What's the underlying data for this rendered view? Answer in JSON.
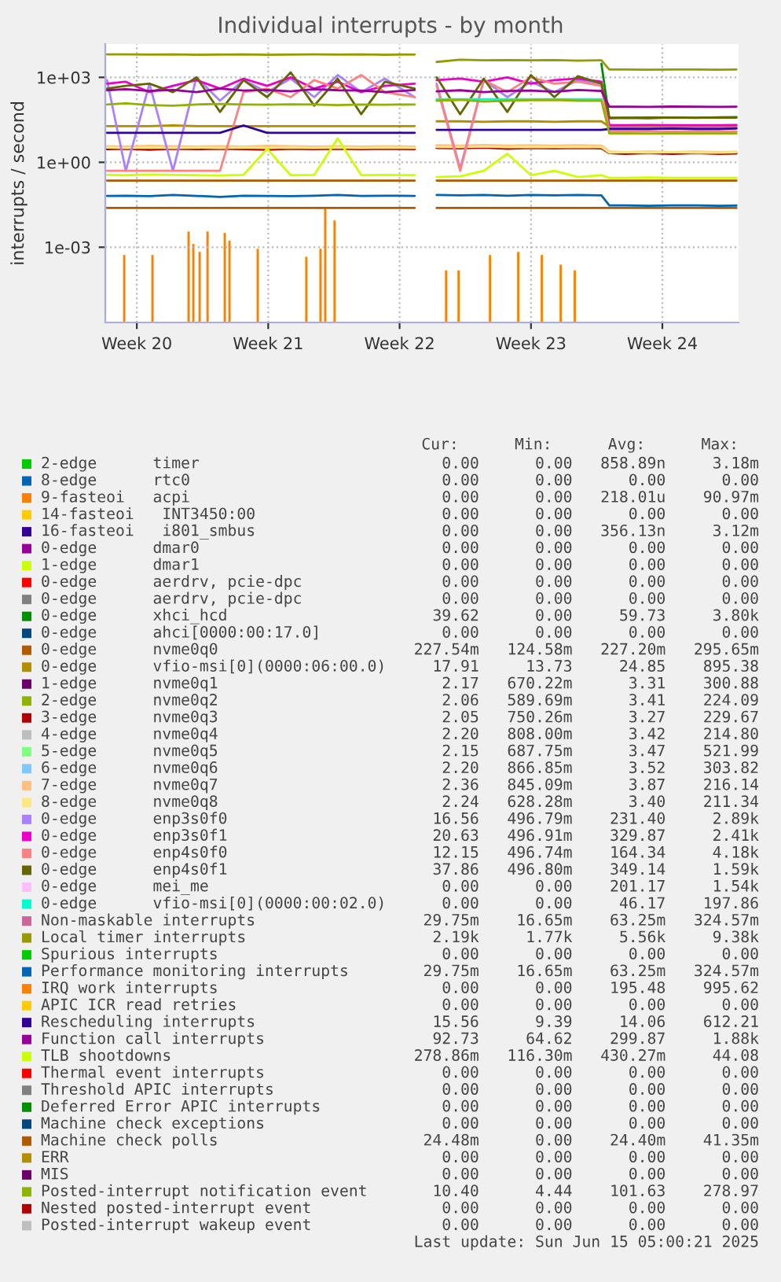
{
  "chart_data": {
    "type": "line",
    "title": "Individual interrupts - by month",
    "ylabel": "interrupts / second",
    "x": [
      "2025-05-10T09:52",
      "2025-05-11T09:53",
      "2025-05-12T16:08",
      "2025-05-13T22:12",
      "2025-05-15T04:16",
      "2025-05-16T10:21",
      "2025-05-17T16:25",
      "2025-05-18T22:39",
      "2025-05-20T04:44",
      "2025-05-21T10:48",
      "2025-05-22T16:52",
      "2025-05-23T22:57",
      "2025-05-25T05:11",
      "2025-05-26T19:19",
      "2025-05-27T07:15",
      "2025-05-27T23:23",
      "2025-05-29T05:27",
      "2025-05-30T11:31",
      "2025-05-31T17:46",
      "2025-06-01T23:50",
      "2025-06-03T05:54",
      "2025-06-04T11:59",
      "2025-06-05T18:03",
      "2025-06-06T04:08",
      "2025-06-07T00:17",
      "2025-06-08T06:22",
      "2025-06-09T12:26",
      "2025-06-10T18:30",
      "2025-06-12T00:35",
      "2025-06-12T22:45"
    ],
    "xlim": [
      "2025-05-10T07:41",
      "2025-06-13T01:26"
    ],
    "xticks": [
      {
        "value": "2025-05-12",
        "label": "Week 20"
      },
      {
        "value": "2025-05-19",
        "label": "Week 21"
      },
      {
        "value": "2025-05-26",
        "label": "Week 22"
      },
      {
        "value": "2025-06-02",
        "label": "Week 23"
      },
      {
        "value": "2025-06-09",
        "label": "Week 24"
      }
    ],
    "log": "y",
    "ylim": [
      2.2e-06,
      15000
    ],
    "yticks": [
      {
        "value": 0.001,
        "label": "1e-03"
      },
      {
        "value": 1,
        "label": "1e+00"
      },
      {
        "value": 1000,
        "label": "1e+03"
      }
    ],
    "grid": true,
    "legend": "bottom",
    "series": [
      {
        "name": "2-edge      timer",
        "color": "#00cc00",
        "values": [
          null,
          null,
          null,
          null,
          null,
          null,
          null,
          null,
          null,
          null,
          null,
          null,
          null,
          null,
          null,
          null,
          null,
          null,
          null,
          null,
          null,
          null,
          null,
          null,
          null,
          null,
          null,
          null,
          null,
          null
        ]
      },
      {
        "name": "8-edge      rtc0",
        "color": "#0066b3",
        "values": [
          null,
          null,
          null,
          null,
          null,
          null,
          null,
          null,
          null,
          null,
          null,
          null,
          null,
          null,
          null,
          null,
          null,
          null,
          null,
          null,
          null,
          null,
          null,
          null,
          null,
          null,
          null,
          null,
          null,
          null
        ]
      },
      {
        "name": "9-fasteoi   acpi",
        "color": "#ff8000",
        "type": "bar",
        "x": [
          "2025-05-11T07:52",
          "2025-05-12T19:59",
          "2025-05-14T18:12",
          "2025-05-15T00:14",
          "2025-05-15T08:18",
          "2025-05-15T18:23",
          "2025-05-16T16:24",
          "2025-05-16T22:26",
          "2025-05-18T10:34",
          "2025-05-21T00:43",
          "2025-05-21T18:52",
          "2025-05-22T00:55",
          "2025-05-22T12:50",
          "2025-05-28T11:28",
          "2025-05-29T03:26",
          "2025-05-30T19:35",
          "2025-06-01T07:42",
          "2025-06-02T13:47",
          "2025-06-03T13:58",
          "2025-06-04T07:57"
        ],
        "values": [
          0.00053,
          0.00053,
          0.0036,
          0.0013,
          0.00068,
          0.0036,
          0.0032,
          0.0017,
          0.00088,
          0.00046,
          0.00088,
          0.025,
          0.0088,
          0.00015,
          0.00015,
          0.00053,
          0.00068,
          0.00053,
          0.00024,
          0.00015
        ]
      },
      {
        "name": "14-fasteoi   INT3450:00",
        "color": "#ffcc00",
        "values": [
          null,
          null,
          null,
          null,
          null,
          null,
          null,
          null,
          null,
          null,
          null,
          null,
          null,
          null,
          null,
          null,
          null,
          null,
          null,
          null,
          null,
          null,
          null,
          null,
          null,
          null,
          null,
          null,
          null,
          null
        ]
      },
      {
        "name": "16-fasteoi   i801_smbus",
        "color": "#330099",
        "values": [
          null,
          null,
          null,
          null,
          null,
          null,
          null,
          null,
          null,
          null,
          null,
          null,
          null,
          null,
          null,
          null,
          null,
          null,
          null,
          null,
          null,
          null,
          null,
          null,
          null,
          null,
          null,
          null,
          null,
          null
        ]
      },
      {
        "name": "0-edge      dmar0",
        "color": "#990099",
        "values": [
          null,
          null,
          null,
          null,
          null,
          null,
          null,
          null,
          null,
          null,
          null,
          null,
          null,
          null,
          null,
          null,
          null,
          null,
          null,
          null,
          null,
          null,
          null,
          null,
          null,
          null,
          null,
          null,
          null,
          null
        ]
      },
      {
        "name": "1-edge      dmar1",
        "color": "#ccff00",
        "values": [
          null,
          null,
          null,
          null,
          null,
          null,
          null,
          null,
          null,
          null,
          null,
          null,
          null,
          null,
          null,
          null,
          null,
          null,
          null,
          null,
          null,
          null,
          null,
          null,
          null,
          null,
          null,
          null,
          null,
          null
        ]
      },
      {
        "name": "0-edge      aerdrv, pcie-dpc",
        "color": "#ff0000",
        "values": [
          null,
          null,
          null,
          null,
          null,
          null,
          null,
          null,
          null,
          null,
          null,
          null,
          null,
          null,
          null,
          null,
          null,
          null,
          null,
          null,
          null,
          null,
          null,
          null,
          null,
          null,
          null,
          null,
          null,
          null
        ]
      },
      {
        "name": "0-edge      aerdrv, pcie-dpc",
        "color": "#808080",
        "values": [
          null,
          null,
          null,
          null,
          null,
          null,
          null,
          null,
          null,
          null,
          null,
          null,
          null,
          null,
          null,
          null,
          null,
          null,
          null,
          null,
          null,
          null,
          null,
          null,
          null,
          null,
          null,
          null,
          null,
          null
        ]
      },
      {
        "name": "0-edge      xhci_hcd",
        "color": "#008f00",
        "values": [
          null,
          null,
          null,
          null,
          null,
          null,
          null,
          null,
          null,
          null,
          null,
          null,
          null,
          null,
          null,
          null,
          null,
          null,
          null,
          null,
          null,
          null,
          3000,
          36,
          37,
          36,
          38,
          37,
          39,
          39.62
        ]
      },
      {
        "name": "0-edge      ahci[0000:00:17.0]",
        "color": "#00487d",
        "values": [
          null,
          null,
          null,
          null,
          null,
          null,
          null,
          null,
          null,
          null,
          null,
          null,
          null,
          null,
          null,
          null,
          null,
          null,
          null,
          null,
          null,
          null,
          null,
          null,
          null,
          null,
          null,
          null,
          null,
          null
        ]
      },
      {
        "name": "0-edge      nvme0q0",
        "color": "#b35a00",
        "values": [
          0.227,
          0.227,
          0.227,
          0.227,
          0.227,
          0.227,
          0.227,
          0.227,
          0.227,
          0.227,
          0.227,
          0.227,
          0.227,
          0.227,
          null,
          0.227,
          0.227,
          0.227,
          0.227,
          0.227,
          0.227,
          0.227,
          0.227,
          0.227,
          0.227,
          0.227,
          0.227,
          0.227,
          0.227,
          0.227
        ]
      },
      {
        "name": "0-edge      vfio-msi[0](0000:06:00.0)",
        "color": "#b38f00",
        "values": [
          19,
          19,
          19,
          20,
          19,
          19,
          19,
          19,
          19,
          19,
          19,
          19,
          19,
          19,
          null,
          28,
          28,
          27,
          28,
          28,
          27,
          28,
          28,
          18,
          18,
          18,
          18,
          18,
          18,
          17.9
        ]
      },
      {
        "name": "1-edge      nvme0q1",
        "color": "#6b006b",
        "values": [
          null,
          null,
          null,
          null,
          null,
          null,
          null,
          null,
          null,
          null,
          null,
          null,
          null,
          null,
          null,
          null,
          null,
          null,
          null,
          null,
          null,
          null,
          null,
          null,
          null,
          null,
          null,
          null,
          null,
          null
        ]
      },
      {
        "name": "2-edge      nvme0q2",
        "color": "#8fb300",
        "values": [
          null,
          null,
          null,
          null,
          null,
          null,
          null,
          null,
          null,
          null,
          null,
          null,
          null,
          null,
          null,
          null,
          null,
          null,
          null,
          null,
          null,
          null,
          null,
          null,
          null,
          null,
          null,
          null,
          null,
          null
        ]
      },
      {
        "name": "3-edge      nvme0q3",
        "color": "#b30000",
        "values": [
          2.9,
          3,
          2.8,
          3,
          2.9,
          3,
          2.9,
          2.8,
          3,
          2.9,
          3,
          2.9,
          3,
          2.9,
          null,
          3.2,
          3.1,
          3.3,
          3,
          3.2,
          3.1,
          3.2,
          3.1,
          2.1,
          2,
          2.1,
          2,
          2.1,
          2,
          2.05
        ]
      },
      {
        "name": "4-edge      nvme0q4",
        "color": "#bebebe",
        "values": [
          null,
          null,
          null,
          null,
          null,
          null,
          null,
          null,
          null,
          null,
          null,
          null,
          null,
          null,
          null,
          null,
          null,
          null,
          null,
          null,
          null,
          null,
          null,
          null,
          null,
          null,
          null,
          null,
          null,
          null
        ]
      },
      {
        "name": "5-edge      nvme0q5",
        "color": "#80ff80",
        "values": [
          null,
          null,
          null,
          null,
          null,
          null,
          null,
          null,
          null,
          null,
          null,
          null,
          null,
          null,
          null,
          null,
          null,
          null,
          null,
          null,
          null,
          null,
          null,
          null,
          null,
          null,
          null,
          null,
          null,
          null
        ]
      },
      {
        "name": "6-edge      nvme0q6",
        "color": "#80c9ff",
        "values": [
          null,
          null,
          null,
          null,
          null,
          null,
          null,
          null,
          null,
          null,
          null,
          null,
          null,
          null,
          null,
          null,
          null,
          null,
          null,
          null,
          null,
          null,
          null,
          null,
          null,
          null,
          null,
          null,
          null,
          null
        ]
      },
      {
        "name": "7-edge      nvme0q7",
        "color": "#ffc080",
        "values": [
          3.7,
          3.6,
          3.8,
          3.7,
          3.6,
          3.7,
          3.6,
          3.8,
          3.7,
          3.6,
          3.7,
          3.6,
          3.7,
          3.6,
          null,
          4,
          3.9,
          4.1,
          3.9,
          4,
          3.9,
          4,
          3.9,
          2.4,
          2.3,
          2.4,
          2.3,
          2.4,
          2.3,
          2.36
        ]
      },
      {
        "name": "8-edge      nvme0q8",
        "color": "#ffe680",
        "values": [
          3.3,
          3.2,
          3.3,
          3.2,
          3.3,
          3.2,
          3.3,
          3.2,
          3.3,
          3.2,
          3.3,
          3.2,
          3.3,
          3.2,
          null,
          3.5,
          3.4,
          3.6,
          3.4,
          3.5,
          3.4,
          3.5,
          3.4,
          2.2,
          2.3,
          2.2,
          2.3,
          2.2,
          2.2,
          2.24
        ]
      },
      {
        "name": "0-edge      enp3s0f0",
        "color": "#aa80ff",
        "values": [
          800,
          0.5,
          600,
          0.5,
          1000,
          150,
          800,
          300,
          900,
          200,
          1200,
          300,
          900,
          200,
          null,
          600,
          0.6,
          800,
          200,
          700,
          300,
          800,
          600,
          16.6,
          16.5,
          16.6,
          16.5,
          16.6,
          16.5,
          16.56
        ]
      },
      {
        "name": "0-edge      enp3s0f1",
        "color": "#ee00cc",
        "values": [
          600,
          700,
          300,
          500,
          800,
          400,
          900,
          500,
          1000,
          400,
          700,
          300,
          500,
          600,
          null,
          800,
          900,
          700,
          1000,
          600,
          800,
          900,
          700,
          20.6,
          20.5,
          20.7,
          20.6,
          20.6,
          20.5,
          20.63
        ]
      },
      {
        "name": "0-edge      enp4s0f0",
        "color": "#ff8080",
        "values": [
          0.5,
          0.5,
          0.5,
          0.5,
          0.5,
          0.5,
          300,
          400,
          200,
          800,
          400,
          1200,
          300,
          200,
          null,
          500,
          0.5,
          800,
          300,
          1000,
          600,
          700,
          500,
          12.2,
          12.1,
          12.2,
          12.1,
          12.2,
          12.1,
          12.15
        ]
      },
      {
        "name": "0-edge      enp4s0f1",
        "color": "#666600",
        "values": [
          400,
          500,
          600,
          300,
          1000,
          60,
          800,
          200,
          1500,
          100,
          900,
          50,
          700,
          400,
          null,
          1000,
          50,
          900,
          60,
          1200,
          200,
          1100,
          600,
          37.9,
          37.8,
          37.9,
          37.9,
          37.8,
          37.9,
          37.86
        ]
      },
      {
        "name": "0-edge      mei_me",
        "color": "#ffbfff",
        "values": [
          null,
          null,
          null,
          null,
          null,
          null,
          null,
          null,
          null,
          null,
          null,
          null,
          null,
          null,
          null,
          null,
          null,
          null,
          null,
          null,
          null,
          null,
          null,
          null,
          null,
          null,
          null,
          null,
          null,
          null
        ]
      },
      {
        "name": "0-edge      vfio-msi[0](0000:00:02.0)",
        "color": "#00ffcc",
        "values": [
          null,
          null,
          null,
          null,
          null,
          null,
          null,
          null,
          null,
          null,
          null,
          null,
          null,
          null,
          null,
          170,
          170,
          170,
          170,
          170,
          170,
          170,
          170,
          null,
          null,
          null,
          null,
          null,
          null,
          null
        ]
      },
      {
        "name": "Non-maskable interrupts",
        "color": "#cc6699",
        "values": [
          null,
          null,
          null,
          null,
          null,
          null,
          null,
          null,
          null,
          null,
          null,
          null,
          null,
          null,
          null,
          null,
          null,
          null,
          null,
          null,
          null,
          null,
          null,
          null,
          null,
          null,
          null,
          null,
          null,
          null
        ]
      },
      {
        "name": "Local timer interrupts",
        "color": "#999900",
        "values": [
          6500,
          6500,
          6400,
          6500,
          6300,
          6400,
          6500,
          6300,
          6400,
          6500,
          6400,
          6500,
          6300,
          6400,
          null,
          3500,
          4200,
          4000,
          4100,
          4000,
          4100,
          3900,
          4000,
          1900,
          1900,
          1850,
          1900,
          1900,
          1850,
          1900
        ]
      },
      {
        "name": "Spurious interrupts",
        "color": "#00cc00",
        "values": [
          null,
          null,
          null,
          null,
          null,
          null,
          null,
          null,
          null,
          null,
          null,
          null,
          null,
          null,
          null,
          null,
          null,
          null,
          null,
          null,
          null,
          null,
          null,
          null,
          null,
          null,
          null,
          null,
          null,
          null
        ]
      },
      {
        "name": "Performance monitoring interrupts",
        "color": "#0066b3",
        "values": [
          0.065,
          0.066,
          0.064,
          0.07,
          0.065,
          0.06,
          0.066,
          0.065,
          0.064,
          0.066,
          0.07,
          0.065,
          0.066,
          0.065,
          null,
          0.07,
          0.068,
          0.07,
          0.066,
          0.07,
          0.068,
          0.07,
          0.068,
          0.03,
          0.03,
          0.029,
          0.03,
          0.03,
          0.029,
          0.02975
        ]
      },
      {
        "name": "IRQ work interrupts",
        "color": "#ff8000",
        "values": [
          null,
          null,
          null,
          null,
          null,
          null,
          null,
          null,
          null,
          null,
          null,
          null,
          null,
          null,
          null,
          null,
          null,
          null,
          null,
          null,
          null,
          null,
          null,
          null,
          null,
          null,
          null,
          null,
          null,
          null
        ]
      },
      {
        "name": "APIC ICR read retries",
        "color": "#ffcc00",
        "values": [
          null,
          null,
          null,
          null,
          null,
          null,
          null,
          null,
          null,
          null,
          null,
          null,
          null,
          null,
          null,
          null,
          null,
          null,
          null,
          null,
          null,
          null,
          null,
          null,
          null,
          null,
          null,
          null,
          null,
          null
        ]
      },
      {
        "name": "Rescheduling interrupts",
        "color": "#330099",
        "values": [
          11,
          11,
          11,
          11,
          11,
          11,
          20,
          11,
          11,
          11,
          11,
          11,
          11,
          11,
          null,
          14,
          14,
          14,
          14,
          14,
          14,
          14,
          14,
          15,
          15,
          15,
          15.5,
          15,
          15,
          15.56
        ]
      },
      {
        "name": "Function call interrupts",
        "color": "#990099",
        "values": [
          350,
          380,
          330,
          360,
          300,
          400,
          340,
          360,
          320,
          380,
          350,
          340,
          300,
          360,
          null,
          320,
          350,
          300,
          330,
          340,
          310,
          360,
          330,
          92,
          92,
          90,
          93,
          92,
          91,
          92.73
        ]
      },
      {
        "name": "TLB shootdowns",
        "color": "#ccff00",
        "values": [
          0.36,
          0.35,
          0.37,
          0.36,
          0.35,
          0.34,
          0.36,
          3,
          0.35,
          0.36,
          7,
          0.35,
          0.36,
          0.35,
          null,
          0.3,
          0.32,
          0.5,
          2,
          0.35,
          0.5,
          0.3,
          0.35,
          0.28,
          0.28,
          0.29,
          0.28,
          0.28,
          0.28,
          0.28
        ]
      },
      {
        "name": "Thermal event interrupts",
        "color": "#ff0000",
        "values": [
          null,
          null,
          null,
          null,
          null,
          null,
          null,
          null,
          null,
          null,
          null,
          null,
          null,
          null,
          null,
          null,
          null,
          null,
          null,
          null,
          null,
          null,
          null,
          null,
          null,
          null,
          null,
          null,
          null,
          null
        ]
      },
      {
        "name": "Threshold APIC interrupts",
        "color": "#808080",
        "values": [
          null,
          null,
          null,
          null,
          null,
          null,
          null,
          null,
          null,
          null,
          null,
          null,
          null,
          null,
          null,
          null,
          null,
          null,
          null,
          null,
          null,
          null,
          null,
          null,
          null,
          null,
          null,
          null,
          null,
          null
        ]
      },
      {
        "name": "Deferred Error APIC interrupts",
        "color": "#008f00",
        "values": [
          null,
          null,
          null,
          null,
          null,
          null,
          null,
          null,
          null,
          null,
          null,
          null,
          null,
          null,
          null,
          null,
          null,
          null,
          null,
          null,
          null,
          null,
          null,
          null,
          null,
          null,
          null,
          null,
          null,
          null
        ]
      },
      {
        "name": "Machine check exceptions",
        "color": "#00487d",
        "values": [
          null,
          null,
          null,
          null,
          null,
          null,
          null,
          null,
          null,
          null,
          null,
          null,
          null,
          null,
          null,
          null,
          null,
          null,
          null,
          null,
          null,
          null,
          null,
          null,
          null,
          null,
          null,
          null,
          null,
          null
        ]
      },
      {
        "name": "Machine check polls",
        "color": "#b35a00",
        "values": [
          0.0244,
          0.0244,
          0.0244,
          0.0244,
          0.0244,
          0.0244,
          0.0244,
          0.0244,
          0.0244,
          0.0244,
          0.0244,
          0.0244,
          0.0244,
          0.0244,
          null,
          0.0244,
          0.0244,
          0.0244,
          0.0244,
          0.0244,
          0.0244,
          0.0244,
          0.0244,
          0.0244,
          0.0244,
          0.0244,
          0.0244,
          0.0244,
          0.0244,
          0.0244
        ]
      },
      {
        "name": "ERR",
        "color": "#b38f00",
        "values": [
          null,
          null,
          null,
          null,
          null,
          null,
          null,
          null,
          null,
          null,
          null,
          null,
          null,
          null,
          null,
          null,
          null,
          null,
          null,
          null,
          null,
          null,
          null,
          null,
          null,
          null,
          null,
          null,
          null,
          null
        ]
      },
      {
        "name": "MIS",
        "color": "#6b006b",
        "values": [
          null,
          null,
          null,
          null,
          null,
          null,
          null,
          null,
          null,
          null,
          null,
          null,
          null,
          null,
          null,
          null,
          null,
          null,
          null,
          null,
          null,
          null,
          null,
          null,
          null,
          null,
          null,
          null,
          null,
          null
        ]
      },
      {
        "name": "Posted-interrupt notification event",
        "color": "#8fb300",
        "values": [
          110,
          120,
          105,
          100,
          110,
          115,
          110,
          108,
          112,
          110,
          105,
          110,
          108,
          110,
          null,
          150,
          160,
          140,
          150,
          155,
          160,
          150,
          150,
          10.4,
          10.5,
          10.3,
          10.4,
          10.5,
          10.4,
          10.4
        ]
      },
      {
        "name": "Nested posted-interrupt event",
        "color": "#b30000",
        "values": [
          null,
          null,
          null,
          null,
          null,
          null,
          null,
          null,
          null,
          null,
          null,
          null,
          null,
          null,
          null,
          null,
          null,
          null,
          null,
          null,
          null,
          null,
          null,
          null,
          null,
          null,
          null,
          null,
          null,
          null
        ]
      },
      {
        "name": "Posted-interrupt wakeup event",
        "color": "#bebebe",
        "values": [
          null,
          null,
          null,
          null,
          null,
          null,
          null,
          null,
          null,
          null,
          null,
          null,
          null,
          null,
          null,
          null,
          null,
          null,
          null,
          null,
          null,
          null,
          null,
          null,
          null,
          null,
          null,
          null,
          null,
          null
        ]
      }
    ],
    "annotations": [
      "      Cur:      Min:      Avg:      Max:",
      "      0.00      0.00   858.89n     3.18m",
      "      0.00      0.00      0.00      0.00",
      "      0.00      0.00   218.01u    90.97m",
      "      0.00      0.00      0.00      0.00",
      "      0.00      0.00   356.13n     3.12m",
      "      0.00      0.00      0.00      0.00",
      "      0.00      0.00      0.00      0.00",
      "      0.00      0.00      0.00      0.00",
      "      0.00      0.00      0.00      0.00",
      "     39.62      0.00     59.73     3.80k",
      "      0.00      0.00      0.00      0.00",
      "   227.54m   124.58m   227.20m   295.65m",
      "     17.91     13.73     24.85    895.38",
      "      2.17   670.22m      3.31    300.88",
      "      2.06   589.69m      3.41    224.09",
      "      2.05   750.26m      3.27    229.67",
      "      2.20   808.00m      3.42    214.80",
      "      2.15   687.75m      3.47    521.99",
      "      2.20   866.85m      3.52    303.82",
      "      2.36   845.09m      3.87    216.14",
      "      2.24   628.28m      3.40    211.34",
      "     16.56   496.79m    231.40     2.89k",
      "     20.63   496.91m    329.87     2.41k",
      "     12.15   496.74m    164.34     4.18k",
      "     37.86   496.80m    349.14     1.59k",
      "      0.00      0.00    201.17     1.54k",
      "      0.00      0.00     46.17    197.86",
      "    29.75m    16.65m    63.25m   324.57m",
      "     2.19k     1.77k     5.56k     9.38k",
      "      0.00      0.00      0.00      0.00",
      "    29.75m    16.65m    63.25m   324.57m",
      "      0.00      0.00    195.48    995.62",
      "      0.00      0.00      0.00      0.00",
      "     15.56      9.39     14.06    612.21",
      "     92.73     64.62    299.87     1.88k",
      "   278.86m   116.30m   430.27m     44.08",
      "      0.00      0.00      0.00      0.00",
      "      0.00      0.00      0.00      0.00",
      "      0.00      0.00      0.00      0.00",
      "      0.00      0.00      0.00      0.00",
      "    24.48m      0.00    24.40m    41.35m",
      "      0.00      0.00      0.00      0.00",
      "      0.00      0.00      0.00      0.00",
      "     10.40      4.44    101.63    278.97",
      "      0.00      0.00      0.00      0.00",
      "      0.00      0.00      0.00      0.00",
      "Last update: Sun Jun 15 05:00:21 2025"
    ]
  }
}
